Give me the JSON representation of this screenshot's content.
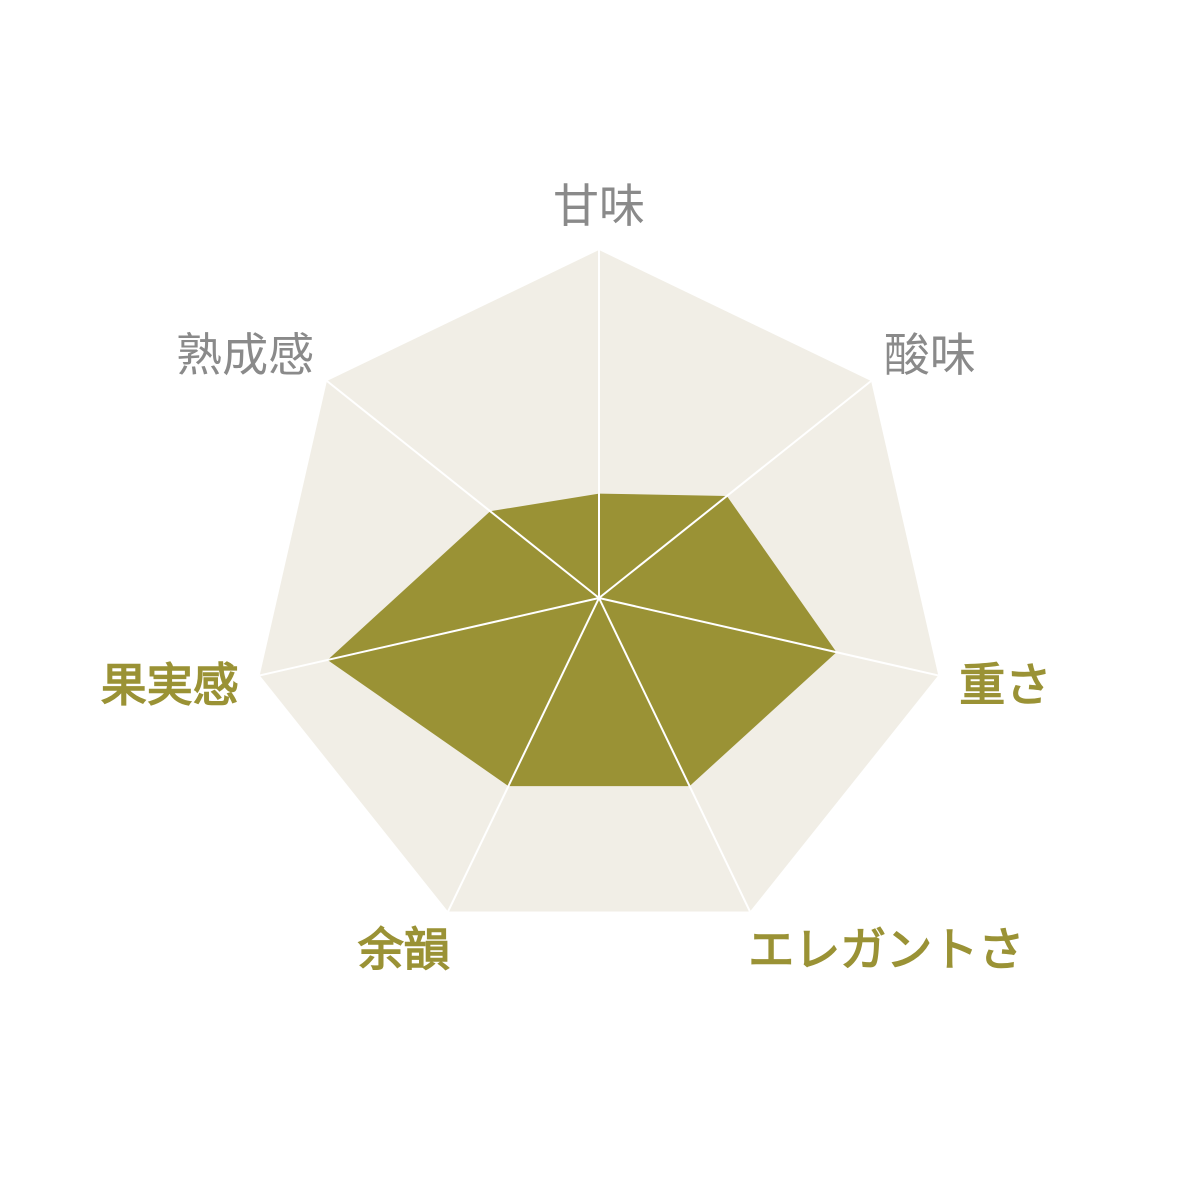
{
  "chart_data": {
    "type": "radar",
    "title": "",
    "axes": [
      "甘味",
      "酸味",
      "重さ",
      "エレガントさ",
      "余韻",
      "果実感",
      "熟成感"
    ],
    "highlighted_axes": [
      "重さ",
      "エレガントさ",
      "余韻",
      "果実感"
    ],
    "range": [
      0,
      1
    ],
    "series": [
      {
        "values": [
          0.3,
          0.47,
          0.7,
          0.6,
          0.6,
          0.8,
          0.4
        ]
      }
    ],
    "grid": false
  },
  "colors": {
    "background": "#ffffff",
    "plot_fill": "#f1eee6",
    "spoke": "#ffffff",
    "series_fill": "#9a9235",
    "label_default": "#8a8a8a",
    "label_highlight": "#9a9235"
  }
}
